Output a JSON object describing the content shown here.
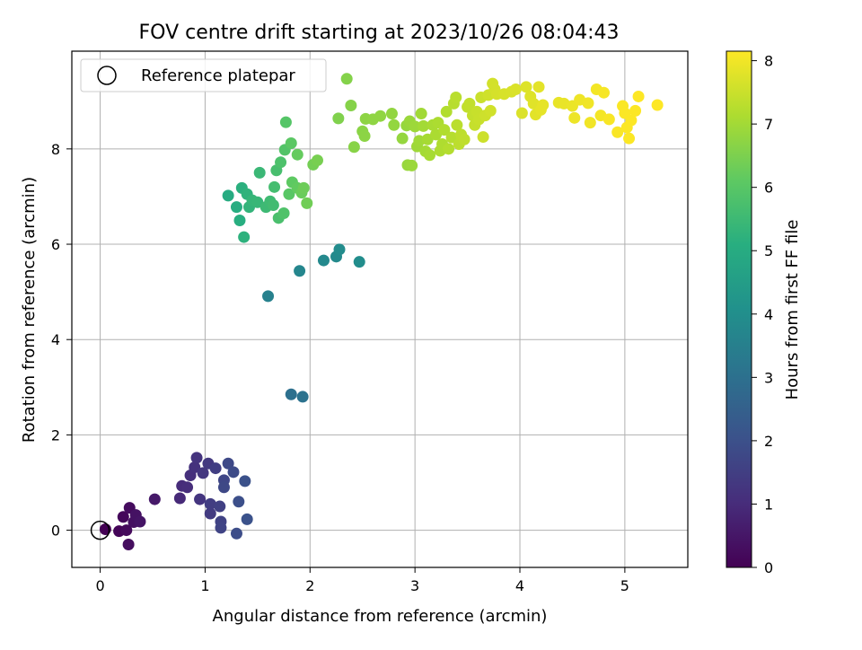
{
  "chart_data": {
    "type": "scatter",
    "title": "FOV centre drift starting at 2023/10/26 08:04:43",
    "xlabel": "Angular distance from reference (arcmin)",
    "ylabel": "Rotation from reference (arcmin)",
    "xlim": [
      -0.27,
      5.6
    ],
    "ylim": [
      -0.78,
      10.05
    ],
    "xticks": [
      0,
      1,
      2,
      3,
      4,
      5
    ],
    "yticks": [
      0,
      2,
      4,
      6,
      8
    ],
    "grid": true,
    "legend": {
      "position": "top-left",
      "entries": [
        "Reference platepar"
      ]
    },
    "reference_point": {
      "x": 0,
      "y": 0,
      "label": "Reference platepar"
    },
    "colorbar": {
      "label": "Hours from first FF file",
      "min": 0,
      "max": 8.15,
      "ticks": [
        0,
        1,
        2,
        3,
        4,
        5,
        6,
        7,
        8
      ],
      "colormap": "viridis"
    },
    "points": [
      {
        "x": 0.05,
        "y": 0.02,
        "c": 0.0
      },
      {
        "x": 0.18,
        "y": -0.02,
        "c": 0.1
      },
      {
        "x": 0.22,
        "y": 0.28,
        "c": 0.15
      },
      {
        "x": 0.25,
        "y": 0.0,
        "c": 0.2
      },
      {
        "x": 0.28,
        "y": 0.47,
        "c": 0.25
      },
      {
        "x": 0.27,
        "y": -0.3,
        "c": 0.3
      },
      {
        "x": 0.32,
        "y": 0.17,
        "c": 0.35
      },
      {
        "x": 0.34,
        "y": 0.32,
        "c": 0.4
      },
      {
        "x": 0.38,
        "y": 0.18,
        "c": 0.45
      },
      {
        "x": 0.52,
        "y": 0.65,
        "c": 0.55
      },
      {
        "x": 0.76,
        "y": 0.67,
        "c": 0.95
      },
      {
        "x": 0.78,
        "y": 0.93,
        "c": 1.0
      },
      {
        "x": 0.83,
        "y": 0.9,
        "c": 1.05
      },
      {
        "x": 0.86,
        "y": 1.15,
        "c": 1.1
      },
      {
        "x": 0.9,
        "y": 1.32,
        "c": 1.15
      },
      {
        "x": 0.92,
        "y": 1.52,
        "c": 1.2
      },
      {
        "x": 0.95,
        "y": 0.65,
        "c": 1.25
      },
      {
        "x": 0.98,
        "y": 1.2,
        "c": 1.3
      },
      {
        "x": 1.03,
        "y": 1.4,
        "c": 1.35
      },
      {
        "x": 1.05,
        "y": 0.35,
        "c": 1.4
      },
      {
        "x": 1.05,
        "y": 0.55,
        "c": 1.45
      },
      {
        "x": 1.1,
        "y": 1.3,
        "c": 1.5
      },
      {
        "x": 1.14,
        "y": 0.5,
        "c": 1.55
      },
      {
        "x": 1.15,
        "y": 0.18,
        "c": 1.6
      },
      {
        "x": 1.15,
        "y": 0.05,
        "c": 1.65
      },
      {
        "x": 1.18,
        "y": 1.05,
        "c": 1.7
      },
      {
        "x": 1.18,
        "y": 0.9,
        "c": 1.75
      },
      {
        "x": 1.22,
        "y": 1.4,
        "c": 1.8
      },
      {
        "x": 1.27,
        "y": 1.22,
        "c": 1.85
      },
      {
        "x": 1.3,
        "y": -0.07,
        "c": 1.9
      },
      {
        "x": 1.32,
        "y": 0.6,
        "c": 1.95
      },
      {
        "x": 1.38,
        "y": 1.03,
        "c": 2.0
      },
      {
        "x": 1.4,
        "y": 0.23,
        "c": 2.05
      },
      {
        "x": 1.82,
        "y": 2.85,
        "c": 3.0
      },
      {
        "x": 1.93,
        "y": 2.8,
        "c": 3.05
      },
      {
        "x": 1.6,
        "y": 4.91,
        "c": 3.55
      },
      {
        "x": 1.9,
        "y": 5.44,
        "c": 3.7
      },
      {
        "x": 2.13,
        "y": 5.66,
        "c": 3.8
      },
      {
        "x": 2.25,
        "y": 5.74,
        "c": 3.85
      },
      {
        "x": 2.28,
        "y": 5.89,
        "c": 3.9
      },
      {
        "x": 2.47,
        "y": 5.63,
        "c": 3.95
      },
      {
        "x": 1.22,
        "y": 7.02,
        "c": 5.0
      },
      {
        "x": 1.3,
        "y": 6.78,
        "c": 5.05
      },
      {
        "x": 1.33,
        "y": 6.5,
        "c": 5.1
      },
      {
        "x": 1.35,
        "y": 7.18,
        "c": 5.15
      },
      {
        "x": 1.37,
        "y": 6.15,
        "c": 5.2
      },
      {
        "x": 1.4,
        "y": 7.05,
        "c": 5.25
      },
      {
        "x": 1.42,
        "y": 6.78,
        "c": 5.3
      },
      {
        "x": 1.45,
        "y": 6.92,
        "c": 5.35
      },
      {
        "x": 1.5,
        "y": 6.88,
        "c": 5.4
      },
      {
        "x": 1.52,
        "y": 7.5,
        "c": 5.45
      },
      {
        "x": 1.58,
        "y": 6.78,
        "c": 5.5
      },
      {
        "x": 1.62,
        "y": 6.9,
        "c": 5.55
      },
      {
        "x": 1.65,
        "y": 6.82,
        "c": 5.6
      },
      {
        "x": 1.66,
        "y": 7.2,
        "c": 5.65
      },
      {
        "x": 1.68,
        "y": 7.55,
        "c": 5.7
      },
      {
        "x": 1.7,
        "y": 6.55,
        "c": 5.75
      },
      {
        "x": 1.72,
        "y": 7.72,
        "c": 5.8
      },
      {
        "x": 1.75,
        "y": 6.65,
        "c": 5.85
      },
      {
        "x": 1.76,
        "y": 7.98,
        "c": 5.9
      },
      {
        "x": 1.77,
        "y": 8.56,
        "c": 5.95
      },
      {
        "x": 1.8,
        "y": 7.05,
        "c": 6.0
      },
      {
        "x": 1.82,
        "y": 8.12,
        "c": 6.05
      },
      {
        "x": 1.83,
        "y": 7.3,
        "c": 6.1
      },
      {
        "x": 1.88,
        "y": 7.18,
        "c": 6.15
      },
      {
        "x": 1.88,
        "y": 7.88,
        "c": 6.2
      },
      {
        "x": 1.92,
        "y": 7.08,
        "c": 6.25
      },
      {
        "x": 1.94,
        "y": 7.18,
        "c": 6.3
      },
      {
        "x": 1.97,
        "y": 6.86,
        "c": 6.35
      },
      {
        "x": 2.03,
        "y": 7.67,
        "c": 6.4
      },
      {
        "x": 2.07,
        "y": 7.76,
        "c": 6.45
      },
      {
        "x": 2.27,
        "y": 8.64,
        "c": 6.55
      },
      {
        "x": 2.35,
        "y": 9.47,
        "c": 6.6
      },
      {
        "x": 2.39,
        "y": 8.91,
        "c": 6.62
      },
      {
        "x": 2.42,
        "y": 8.04,
        "c": 6.65
      },
      {
        "x": 2.5,
        "y": 8.37,
        "c": 6.68
      },
      {
        "x": 2.52,
        "y": 8.27,
        "c": 6.7
      },
      {
        "x": 2.53,
        "y": 8.63,
        "c": 6.72
      },
      {
        "x": 2.6,
        "y": 8.62,
        "c": 6.74
      },
      {
        "x": 2.67,
        "y": 8.69,
        "c": 6.76
      },
      {
        "x": 2.78,
        "y": 8.74,
        "c": 6.78
      },
      {
        "x": 2.8,
        "y": 8.5,
        "c": 6.8
      },
      {
        "x": 2.88,
        "y": 8.22,
        "c": 6.82
      },
      {
        "x": 2.92,
        "y": 8.49,
        "c": 6.84
      },
      {
        "x": 2.93,
        "y": 7.66,
        "c": 6.86
      },
      {
        "x": 2.95,
        "y": 8.58,
        "c": 6.88
      },
      {
        "x": 2.97,
        "y": 7.65,
        "c": 6.9
      },
      {
        "x": 3.0,
        "y": 8.47,
        "c": 6.92
      },
      {
        "x": 3.02,
        "y": 8.05,
        "c": 6.94
      },
      {
        "x": 3.04,
        "y": 8.17,
        "c": 6.96
      },
      {
        "x": 3.06,
        "y": 8.74,
        "c": 6.98
      },
      {
        "x": 3.08,
        "y": 8.48,
        "c": 7.0
      },
      {
        "x": 3.1,
        "y": 7.95,
        "c": 7.02
      },
      {
        "x": 3.12,
        "y": 8.2,
        "c": 7.04
      },
      {
        "x": 3.14,
        "y": 7.87,
        "c": 7.06
      },
      {
        "x": 3.17,
        "y": 8.5,
        "c": 7.08
      },
      {
        "x": 3.2,
        "y": 8.3,
        "c": 7.1
      },
      {
        "x": 3.22,
        "y": 8.55,
        "c": 7.12
      },
      {
        "x": 3.24,
        "y": 7.96,
        "c": 7.14
      },
      {
        "x": 3.26,
        "y": 8.1,
        "c": 7.16
      },
      {
        "x": 3.28,
        "y": 8.4,
        "c": 7.18
      },
      {
        "x": 3.3,
        "y": 8.78,
        "c": 7.2
      },
      {
        "x": 3.32,
        "y": 8.0,
        "c": 7.22
      },
      {
        "x": 3.35,
        "y": 8.24,
        "c": 7.24
      },
      {
        "x": 3.37,
        "y": 8.95,
        "c": 7.26
      },
      {
        "x": 3.39,
        "y": 9.08,
        "c": 7.28
      },
      {
        "x": 3.4,
        "y": 8.5,
        "c": 7.3
      },
      {
        "x": 3.42,
        "y": 8.1,
        "c": 7.32
      },
      {
        "x": 3.44,
        "y": 8.3,
        "c": 7.34
      },
      {
        "x": 3.47,
        "y": 8.2,
        "c": 7.36
      },
      {
        "x": 3.5,
        "y": 8.88,
        "c": 7.38
      },
      {
        "x": 3.52,
        "y": 8.95,
        "c": 7.4
      },
      {
        "x": 3.55,
        "y": 8.7,
        "c": 7.42
      },
      {
        "x": 3.57,
        "y": 8.5,
        "c": 7.44
      },
      {
        "x": 3.59,
        "y": 8.78,
        "c": 7.46
      },
      {
        "x": 3.61,
        "y": 8.62,
        "c": 7.48
      },
      {
        "x": 3.63,
        "y": 9.08,
        "c": 7.5
      },
      {
        "x": 3.65,
        "y": 8.25,
        "c": 7.52
      },
      {
        "x": 3.67,
        "y": 8.7,
        "c": 7.54
      },
      {
        "x": 3.7,
        "y": 9.13,
        "c": 7.56
      },
      {
        "x": 3.72,
        "y": 8.8,
        "c": 7.58
      },
      {
        "x": 3.74,
        "y": 9.37,
        "c": 7.6
      },
      {
        "x": 3.76,
        "y": 9.25,
        "c": 7.62
      },
      {
        "x": 3.78,
        "y": 9.15,
        "c": 7.64
      },
      {
        "x": 3.85,
        "y": 9.15,
        "c": 7.66
      },
      {
        "x": 3.92,
        "y": 9.2,
        "c": 7.68
      },
      {
        "x": 3.96,
        "y": 9.25,
        "c": 7.7
      },
      {
        "x": 4.02,
        "y": 8.75,
        "c": 7.72
      },
      {
        "x": 4.06,
        "y": 9.3,
        "c": 7.74
      },
      {
        "x": 4.1,
        "y": 9.1,
        "c": 7.76
      },
      {
        "x": 4.13,
        "y": 8.95,
        "c": 7.78
      },
      {
        "x": 4.15,
        "y": 8.72,
        "c": 7.8
      },
      {
        "x": 4.18,
        "y": 9.3,
        "c": 7.82
      },
      {
        "x": 4.2,
        "y": 8.82,
        "c": 7.84
      },
      {
        "x": 4.22,
        "y": 8.92,
        "c": 7.86
      },
      {
        "x": 4.37,
        "y": 8.97,
        "c": 7.88
      },
      {
        "x": 4.42,
        "y": 8.95,
        "c": 7.9
      },
      {
        "x": 4.5,
        "y": 8.9,
        "c": 7.92
      },
      {
        "x": 4.52,
        "y": 8.65,
        "c": 7.94
      },
      {
        "x": 4.57,
        "y": 9.03,
        "c": 7.96
      },
      {
        "x": 4.65,
        "y": 8.96,
        "c": 7.98
      },
      {
        "x": 4.67,
        "y": 8.55,
        "c": 8.0
      },
      {
        "x": 4.73,
        "y": 9.25,
        "c": 8.02
      },
      {
        "x": 4.77,
        "y": 8.7,
        "c": 8.04
      },
      {
        "x": 4.8,
        "y": 9.18,
        "c": 8.06
      },
      {
        "x": 4.85,
        "y": 8.62,
        "c": 8.08
      },
      {
        "x": 4.93,
        "y": 8.35,
        "c": 8.1
      },
      {
        "x": 4.98,
        "y": 8.9,
        "c": 8.11
      },
      {
        "x": 5.0,
        "y": 8.75,
        "c": 8.12
      },
      {
        "x": 5.02,
        "y": 8.45,
        "c": 8.13
      },
      {
        "x": 5.04,
        "y": 8.22,
        "c": 8.13
      },
      {
        "x": 5.06,
        "y": 8.6,
        "c": 8.14
      },
      {
        "x": 5.1,
        "y": 8.8,
        "c": 8.14
      },
      {
        "x": 5.13,
        "y": 9.1,
        "c": 8.15
      },
      {
        "x": 5.31,
        "y": 8.92,
        "c": 8.15
      }
    ]
  }
}
